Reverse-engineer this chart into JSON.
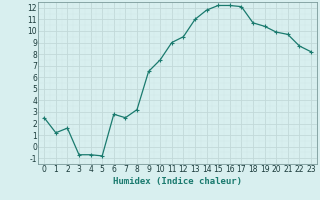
{
  "x": [
    0,
    1,
    2,
    3,
    4,
    5,
    6,
    7,
    8,
    9,
    10,
    11,
    12,
    13,
    14,
    15,
    16,
    17,
    18,
    19,
    20,
    21,
    22,
    23
  ],
  "y": [
    2.5,
    1.2,
    1.6,
    -0.7,
    -0.7,
    -0.8,
    2.8,
    2.5,
    3.2,
    6.5,
    7.5,
    9.0,
    9.5,
    11.0,
    11.8,
    12.2,
    12.2,
    12.1,
    10.7,
    10.4,
    9.9,
    9.7,
    8.7,
    8.2
  ],
  "line_color": "#1a7a6e",
  "marker": "+",
  "marker_size": 3,
  "marker_lw": 0.8,
  "line_width": 0.9,
  "bg_color": "#d8efef",
  "grid_major_color": "#c2d9d9",
  "grid_minor_color": "#d0e6e6",
  "xlabel": "Humidex (Indice chaleur)",
  "xlim": [
    -0.5,
    23.5
  ],
  "ylim": [
    -1.5,
    12.5
  ],
  "xticks": [
    0,
    1,
    2,
    3,
    4,
    5,
    6,
    7,
    8,
    9,
    10,
    11,
    12,
    13,
    14,
    15,
    16,
    17,
    18,
    19,
    20,
    21,
    22,
    23
  ],
  "yticks": [
    -1,
    0,
    1,
    2,
    3,
    4,
    5,
    6,
    7,
    8,
    9,
    10,
    11,
    12
  ],
  "xlabel_fontsize": 6.5,
  "tick_fontsize": 5.5,
  "spine_color": "#7a9a9a"
}
